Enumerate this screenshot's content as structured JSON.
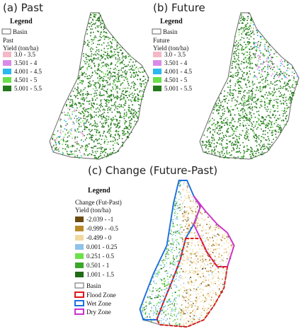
{
  "panels": [
    {
      "title": "(a) Past",
      "legend": {
        "title": "Legend",
        "basin": "Basin",
        "heading": "Past",
        "unit": "Yield (ton/ha)",
        "classes": [
          {
            "label": "3.0 - 3.5",
            "color": "#f4b8c8"
          },
          {
            "label": "3.501 - 4",
            "color": "#d98ae8"
          },
          {
            "label": "4.001 - 4.5",
            "color": "#2ab8ee"
          },
          {
            "label": "4.501 - 5",
            "color": "#6be04a"
          },
          {
            "label": "5.001 - 5.5",
            "color": "#237a1c"
          }
        ]
      }
    },
    {
      "title": "(b) Future",
      "legend": {
        "title": "Legend",
        "basin": "Basin",
        "heading": "Future",
        "unit": "Yield (ton/ha)",
        "classes": [
          {
            "label": "3.0 - 3.5",
            "color": "#f4b8c8"
          },
          {
            "label": "3.501 - 4",
            "color": "#d98ae8"
          },
          {
            "label": "4.001 - 4.5",
            "color": "#2ab8ee"
          },
          {
            "label": "4.501 - 5",
            "color": "#6be04a"
          },
          {
            "label": "5.001 - 5.5",
            "color": "#237a1c"
          }
        ]
      }
    }
  ],
  "change": {
    "title": "(c) Change (Future-Past)",
    "legend": {
      "title": "Legend",
      "heading": "Change (Fut-Past)",
      "unit": "Yield (ton/ha)",
      "classes": [
        {
          "label": "-2.039 - -1",
          "color": "#6b4a12"
        },
        {
          "label": "-0.999 - -0.5",
          "color": "#b98a2a"
        },
        {
          "label": "-0.499 - 0",
          "color": "#f2d9a0"
        },
        {
          "label": "0.001 - 0.25",
          "color": "#8ec3ea"
        },
        {
          "label": "0.251 - 0.5",
          "color": "#6be04a"
        },
        {
          "label": "0.501 - 1",
          "color": "#3aa62a"
        },
        {
          "label": "1.001 - 1.5",
          "color": "#1f6b17"
        }
      ],
      "basin": "Basin",
      "zones": [
        {
          "label": "Flood Zone",
          "color": "#e01818"
        },
        {
          "label": "Wet Zone",
          "color": "#1f6fe0"
        },
        {
          "label": "Dry Zone",
          "color": "#cc33cc"
        }
      ]
    }
  }
}
